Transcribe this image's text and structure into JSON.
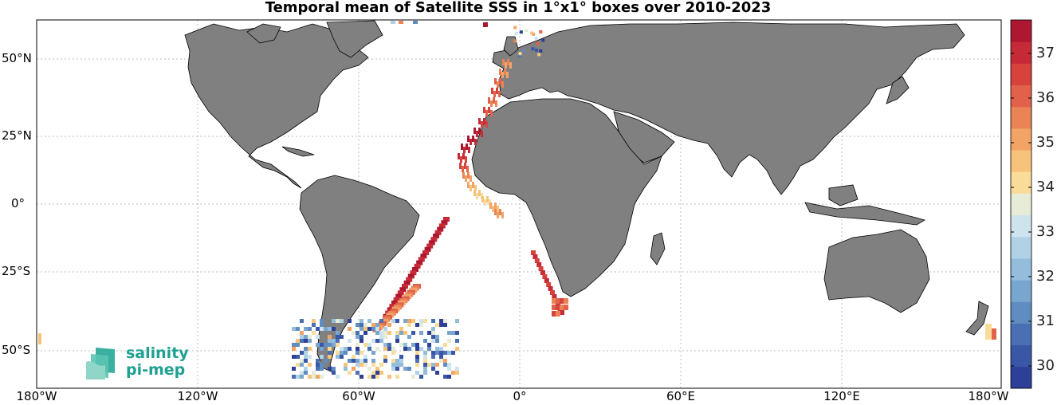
{
  "title": "Temporal mean of Satellite SSS in 1°x1° boxes over 2010-2023",
  "x_ticks": [
    "180°W",
    "120°W",
    "60°W",
    "0°",
    "60°E",
    "120°E",
    "180°W"
  ],
  "y_ticks": [
    "50°N",
    "25°N",
    "0°",
    "25°S",
    "50°S"
  ],
  "colorbar": {
    "min": 29.5,
    "max": 37.75,
    "step": 0.5,
    "ticks": [
      "37",
      "36",
      "35",
      "34",
      "33",
      "32",
      "31",
      "30"
    ],
    "colors": [
      "#2d3f97",
      "#3a56a6",
      "#4a70b3",
      "#5f8cc1",
      "#79a6cf",
      "#94bcdb",
      "#b1d1e6",
      "#cde3ee",
      "#e6ecd6",
      "#f9dc9a",
      "#f7c37b",
      "#f2a466",
      "#ea8356",
      "#e1614a",
      "#d7423d",
      "#c52a36",
      "#ad1830"
    ]
  },
  "logo": {
    "line1": "salinity",
    "line2": "pi-mep"
  },
  "colors": {
    "land": "#808080",
    "ocean": "#ffffff",
    "grid": "#bdbdbd"
  }
}
